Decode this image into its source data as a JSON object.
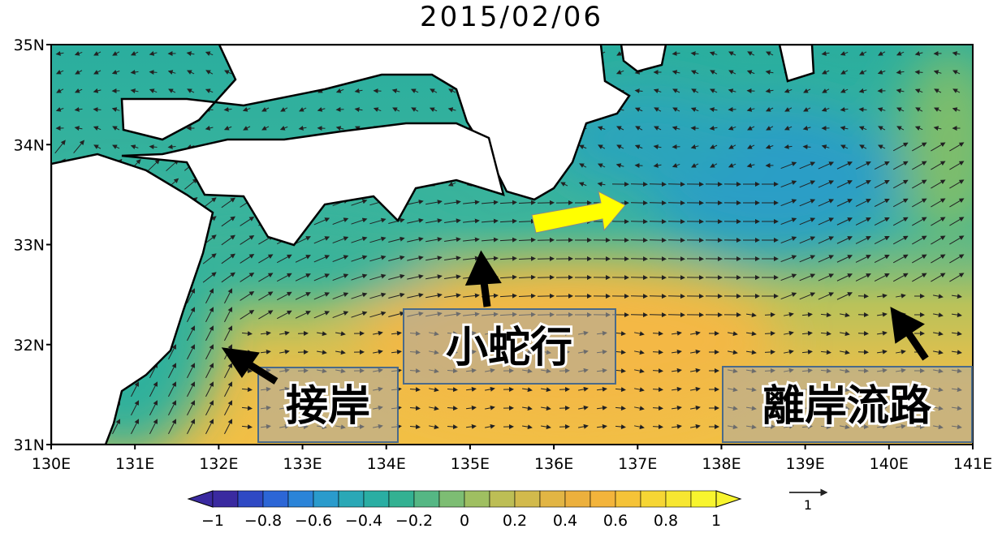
{
  "title": "2015/02/06",
  "lat_labels": [
    "35N",
    "34N",
    "33N",
    "32N",
    "31N"
  ],
  "lon_labels": [
    "130E",
    "131E",
    "132E",
    "133E",
    "134E",
    "135E",
    "136E",
    "137E",
    "138E",
    "139E",
    "140E",
    "141E"
  ],
  "colorbar": {
    "labels": [
      "−1",
      "−0.8",
      "−0.6",
      "−0.4",
      "−0.2",
      "0",
      "0.2",
      "0.4",
      "0.6",
      "0.8",
      "1"
    ]
  },
  "vector_reference": "1",
  "annotations": [
    "接岸",
    "小蛇行",
    "離岸流路"
  ]
}
